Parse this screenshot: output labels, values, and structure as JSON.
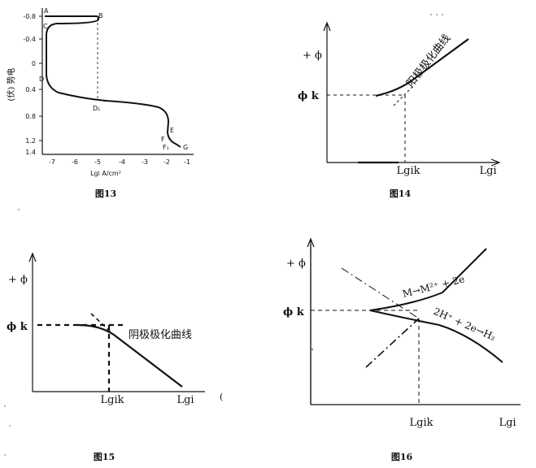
{
  "fig13": {
    "caption": "图13",
    "ylabel": "(伏) 势电",
    "xlabel": "Lgi  A/cm²",
    "y_ticks": [
      "-0.8",
      "-0.4",
      "0",
      "0.4",
      "0.8",
      "1.2",
      "1.4"
    ],
    "x_ticks": [
      "-7",
      "-6",
      "-5",
      "-4",
      "-3",
      "-2",
      "-1"
    ],
    "points": [
      "A",
      "B",
      "C",
      "D",
      "D₁",
      "E",
      "F",
      "F₁",
      "G"
    ]
  },
  "fig14": {
    "caption": "图14",
    "ylabel": "+ ϕ",
    "phi_k": "ϕ k",
    "x_mark": "Lgik",
    "xlabel": "Lgi",
    "curve_label": "阳极极化曲线"
  },
  "fig15": {
    "caption": "图15",
    "ylabel": "+ ϕ",
    "phi_k": "ϕ k",
    "x_mark": "Lgik",
    "xlabel": "Lgi",
    "curve_label": "阴极极化曲线"
  },
  "fig16": {
    "caption": "图16",
    "ylabel": "+ ϕ",
    "phi_k": "ϕ k",
    "x_mark": "Lgik",
    "xlabel": "Lgi",
    "anodic_label": "M→M²⁺ + 2e",
    "cathodic_label": "2H⁺ + 2e→H₂"
  }
}
